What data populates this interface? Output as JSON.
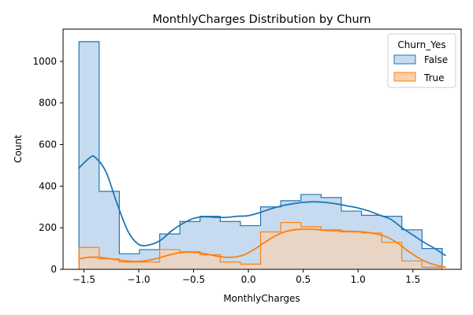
{
  "chart_data": {
    "type": "histogram",
    "title": "MonthlyCharges Distribution by Churn",
    "xlabel": "MonthlyCharges",
    "ylabel": "Count",
    "xlim": [
      -1.69,
      1.94
    ],
    "ylim": [
      0,
      1155
    ],
    "xticks": [
      -1.5,
      -1.0,
      -0.5,
      0.0,
      0.5,
      1.0,
      1.5
    ],
    "xtick_labels": [
      "−1.5",
      "−1.0",
      "−0.5",
      "0.0",
      "0.5",
      "1.0",
      "1.5"
    ],
    "yticks": [
      0,
      200,
      400,
      600,
      800,
      1000
    ],
    "ytick_labels": [
      "0",
      "200",
      "400",
      "600",
      "800",
      "1000"
    ],
    "grid": false,
    "legend": {
      "title": "Churn_Yes",
      "placement": "top-right"
    },
    "bin_edges": [
      -1.545,
      -1.361,
      -1.177,
      -0.993,
      -0.809,
      -0.625,
      -0.441,
      -0.257,
      -0.073,
      0.111,
      0.295,
      0.479,
      0.663,
      0.847,
      1.031,
      1.215,
      1.399,
      1.583,
      1.767
    ],
    "series": [
      {
        "name": "False",
        "color": "#1f77b4",
        "fill": "#c6dbef",
        "counts": [
          1095,
          375,
          75,
          95,
          170,
          230,
          255,
          230,
          210,
          300,
          330,
          360,
          345,
          280,
          260,
          255,
          190,
          100
        ],
        "kde_x": [
          -1.55,
          -1.45,
          -1.4,
          -1.3,
          -1.2,
          -1.1,
          -1.0,
          -0.9,
          -0.8,
          -0.7,
          -0.6,
          -0.5,
          -0.4,
          -0.3,
          -0.2,
          -0.1,
          0.0,
          0.1,
          0.2,
          0.3,
          0.4,
          0.5,
          0.6,
          0.7,
          0.8,
          0.9,
          1.0,
          1.1,
          1.2,
          1.3,
          1.4,
          1.5,
          1.6,
          1.7,
          1.8
        ],
        "kde_y": [
          485,
          535,
          540,
          470,
          320,
          185,
          120,
          118,
          140,
          185,
          220,
          245,
          253,
          250,
          250,
          255,
          258,
          272,
          290,
          305,
          315,
          322,
          325,
          322,
          315,
          305,
          295,
          280,
          260,
          240,
          200,
          165,
          130,
          100,
          65
        ]
      },
      {
        "name": "True",
        "color": "#ff7f0e",
        "fill": "#ffd0a8",
        "counts": [
          105,
          50,
          35,
          35,
          95,
          85,
          70,
          35,
          25,
          180,
          225,
          205,
          190,
          180,
          175,
          130,
          40,
          10
        ],
        "kde_x": [
          -1.55,
          -1.45,
          -1.35,
          -1.25,
          -1.15,
          -1.05,
          -0.95,
          -0.85,
          -0.75,
          -0.65,
          -0.55,
          -0.45,
          -0.35,
          -0.25,
          -0.15,
          -0.05,
          0.05,
          0.15,
          0.25,
          0.35,
          0.45,
          0.55,
          0.65,
          0.75,
          0.85,
          0.95,
          1.05,
          1.15,
          1.25,
          1.35,
          1.45,
          1.55,
          1.65,
          1.75,
          1.8
        ],
        "kde_y": [
          50,
          58,
          57,
          50,
          42,
          38,
          40,
          50,
          65,
          78,
          83,
          80,
          70,
          60,
          58,
          68,
          95,
          130,
          162,
          183,
          192,
          193,
          190,
          186,
          184,
          182,
          180,
          172,
          158,
          130,
          90,
          55,
          30,
          15,
          10
        ]
      }
    ]
  }
}
